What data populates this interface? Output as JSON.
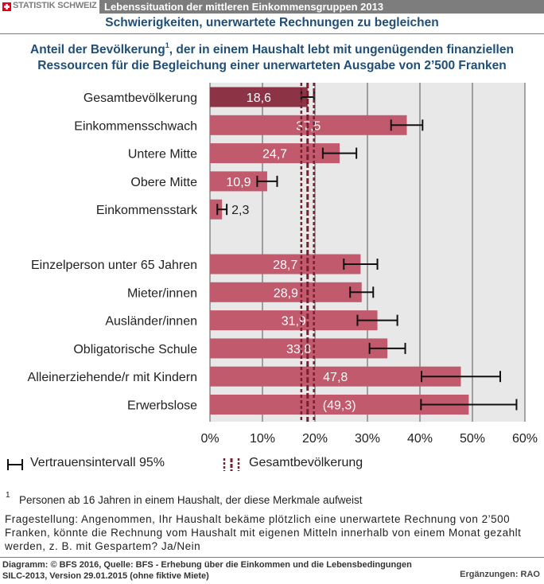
{
  "header": {
    "logo_text": "STATISTIK SCHWEIZ",
    "title": "Lebenssituation der mittleren Einkommensgruppen 2013"
  },
  "subtitle": "Schwierigkeiten, unerwartete Rechnungen zu begleichen",
  "chart_title": {
    "line1_part1": "Anteil der Bevölkerung",
    "footnote_mark": "1",
    "line1_part2": ", der in einem Haushalt lebt mit ungenügenden finanziellen",
    "line2": "Ressourcen für die Begleichung einer unerwarteten Ausgabe von 2’500 Franken"
  },
  "chart_data": {
    "type": "bar",
    "orientation": "horizontal",
    "x_unit": "%",
    "xlim": [
      0,
      60
    ],
    "x_ticks": [
      "0%",
      "10%",
      "20%",
      "30%",
      "40%",
      "50%",
      "60%"
    ],
    "grid": true,
    "reference_line": {
      "name": "Gesamtbevölkerung",
      "value": 18.6,
      "ci": [
        17.4,
        19.8
      ]
    },
    "categories": [
      {
        "label": "Gesamtbevölkerung",
        "value": 18.6,
        "value_label": "18,6",
        "ci": [
          17.4,
          19.8
        ],
        "highlight": true
      },
      {
        "label": "Einkommensschwach",
        "value": 37.5,
        "value_label": "37,5",
        "ci": [
          34.5,
          40.5
        ]
      },
      {
        "label": "Untere Mitte",
        "value": 24.7,
        "value_label": "24,7",
        "ci": [
          21.5,
          27.9
        ]
      },
      {
        "label": "Obere Mitte",
        "value": 10.9,
        "value_label": "10,9",
        "ci": [
          9.0,
          12.8
        ]
      },
      {
        "label": "Einkommensstark",
        "value": 2.3,
        "value_label": "2,3",
        "ci": [
          1.4,
          3.2
        ],
        "label_outside": true
      },
      {
        "label": "Einzelperson unter 65 Jahren",
        "value": 28.7,
        "value_label": "28,7",
        "ci": [
          25.5,
          31.9
        ],
        "gap_before": true
      },
      {
        "label": "Mieter/innen",
        "value": 28.9,
        "value_label": "28,9",
        "ci": [
          26.7,
          31.1
        ]
      },
      {
        "label": "Ausländer/innen",
        "value": 31.9,
        "value_label": "31,9",
        "ci": [
          28.1,
          35.7
        ]
      },
      {
        "label": "Obligatorische Schule",
        "value": 33.8,
        "value_label": "33,8",
        "ci": [
          30.4,
          37.2
        ]
      },
      {
        "label": "Alleinerziehende/r mit Kindern",
        "value": 47.8,
        "value_label": "47,8",
        "ci": [
          40.3,
          55.3
        ]
      },
      {
        "label": "Erwerbslose",
        "value": 49.3,
        "value_label": "(49,3)",
        "ci": [
          40.2,
          58.4
        ]
      }
    ]
  },
  "colors": {
    "bar": "#c05a6c",
    "bar_highlight": "#8c3446",
    "reference": "#7a1f30",
    "title_blue": "#1f4e79",
    "header_gray": "#7d7d7d",
    "plot_bg": "#e8e8e8"
  },
  "legend": {
    "ci_label": "Vertrauensintervall 95%",
    "ci_icon": "error-bar-icon",
    "ref_label": "Gesamtbevölkerung",
    "ref_icon": "dashed-reference-lines-icon"
  },
  "footnote": {
    "mark": "1",
    "text": "Personen ab 16 Jahren in einem Haushalt, der diese Merkmale aufweist"
  },
  "question": "Fragestellung: Angenommen, Ihr Haushalt bekäme plötzlich eine unerwartete Rechnung von 2’500 Franken, könnte die Rechnung vom Haushalt mit eigenen Mitteln innerhalb von einem Monat gezahlt werden, z. B. mit Gespartem? Ja/Nein",
  "footer": {
    "source": "Diagramm: © BFS 2016, Quelle: BFS - Erhebung über die Einkommen und die Lebensbedingungen  SILC-2013, Version 29.01.2015 (ohne fiktive Miete)",
    "additions": "Ergänzungen: RAO"
  }
}
